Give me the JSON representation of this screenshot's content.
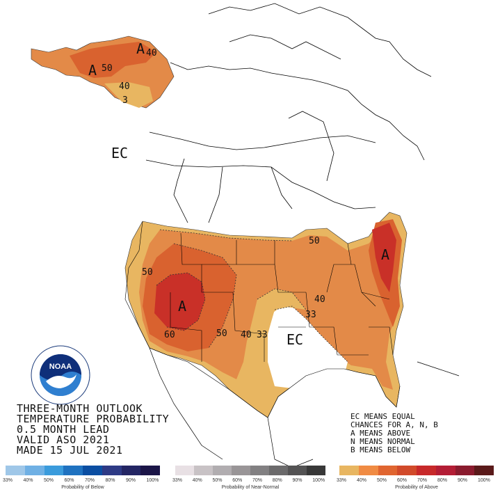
{
  "title_lines": [
    "THREE-MONTH OUTLOOK",
    "TEMPERATURE PROBABILITY",
    "0.5 MONTH LEAD",
    "VALID ASO 2021",
    "MADE 15 JUL 2021"
  ],
  "legend_notes": [
    "EC MEANS EQUAL",
    "CHANCES FOR A, N, B",
    "A MEANS ABOVE",
    "N MEANS NORMAL",
    "B MEANS BELOW"
  ],
  "map_labels": {
    "alaska_a": "A",
    "alaska_50": "50",
    "alaska_40a": "40",
    "alaska_40b": "40",
    "alaska_33": "3",
    "ec_canada": "EC",
    "west_50": "50",
    "west_a": "A",
    "west_60": "60",
    "sw_50": "50",
    "sw_40": "40",
    "sw_33": "33",
    "ec_south": "EC",
    "ne_a": "A",
    "gl_50": "50",
    "ohio_40": "40",
    "ohio_33": "33"
  },
  "logo": {
    "center": "NOAA",
    "ring_top": "NATIONAL OCEANIC AND ATMOSPHERIC ADMINISTRATION",
    "ring_bottom": "U.S. DEPARTMENT OF COMMERCE"
  },
  "scales": {
    "below": {
      "caption": "Probability of Below",
      "ticks": [
        "33%",
        "40%",
        "50%",
        "60%",
        "70%",
        "80%",
        "90%",
        "100%"
      ],
      "colors": [
        "#9fc7e8",
        "#6fb0e4",
        "#3a9bdc",
        "#1f72c0",
        "#0b4ea2",
        "#2e3a85",
        "#232563",
        "#1b1547"
      ]
    },
    "near": {
      "caption": "Probability of Near-Normal",
      "ticks": [
        "33%",
        "40%",
        "50%",
        "60%",
        "70%",
        "80%",
        "90%",
        "100%"
      ],
      "colors": [
        "#e8e0e4",
        "#c8c2c5",
        "#b1adb0",
        "#999597",
        "#828082",
        "#6b6a6b",
        "#545354",
        "#383838"
      ]
    },
    "above": {
      "caption": "Probability of Above",
      "ticks": [
        "33%",
        "40%",
        "50%",
        "60%",
        "70%",
        "80%",
        "90%",
        "100%"
      ],
      "colors": [
        "#e8b661",
        "#f08b43",
        "#e06530",
        "#d14a2a",
        "#c7292a",
        "#b31d35",
        "#8a1b2e",
        "#5a1a1a"
      ]
    }
  },
  "colors": {
    "p33": "#e8b661",
    "p40": "#e38a48",
    "p50": "#d9622f",
    "p60": "#c93028",
    "land_line": "#000000"
  }
}
